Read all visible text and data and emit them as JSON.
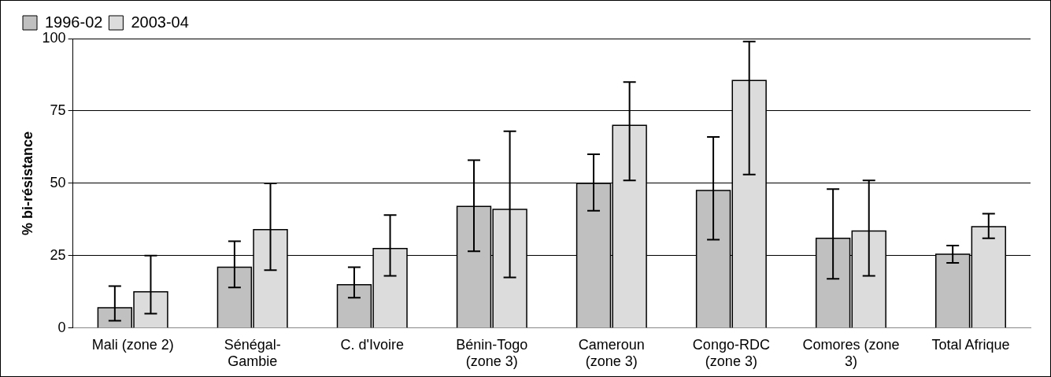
{
  "chart_data": {
    "type": "bar",
    "ylabel": "% bi-résistance",
    "categories": [
      "Mali (zone 2)",
      "Sénégal-Gambie",
      "C. d'Ivoire",
      "Bénin-Togo (zone 3)",
      "Cameroun (zone 3)",
      "Congo-RDC (zone 3)",
      "Comores (zone 3)",
      "Total Afrique"
    ],
    "series": [
      {
        "name": "1996-02",
        "color": "#c0c0c0",
        "values": [
          7,
          21,
          15,
          42,
          50,
          47.5,
          31,
          25.5
        ],
        "errors": [
          [
            2.5,
            14.5
          ],
          [
            14,
            30
          ],
          [
            10.5,
            21
          ],
          [
            26.5,
            58
          ],
          [
            40.5,
            60
          ],
          [
            30.5,
            66
          ],
          [
            17,
            48
          ],
          [
            22.5,
            28.5
          ]
        ]
      },
      {
        "name": "2003-04",
        "color": "#dcdcdc",
        "values": [
          12.5,
          34,
          27.5,
          41,
          70,
          85.5,
          33.5,
          35
        ],
        "errors": [
          [
            5,
            25
          ],
          [
            20,
            50
          ],
          [
            18,
            39
          ],
          [
            17.5,
            68
          ],
          [
            51,
            85
          ],
          [
            53,
            99
          ],
          [
            18,
            51
          ],
          [
            31,
            39.5
          ]
        ]
      }
    ],
    "ylim": [
      0,
      100
    ],
    "yticks": [
      0,
      25,
      50,
      75,
      100
    ],
    "grid": "y",
    "legend": "top left"
  }
}
